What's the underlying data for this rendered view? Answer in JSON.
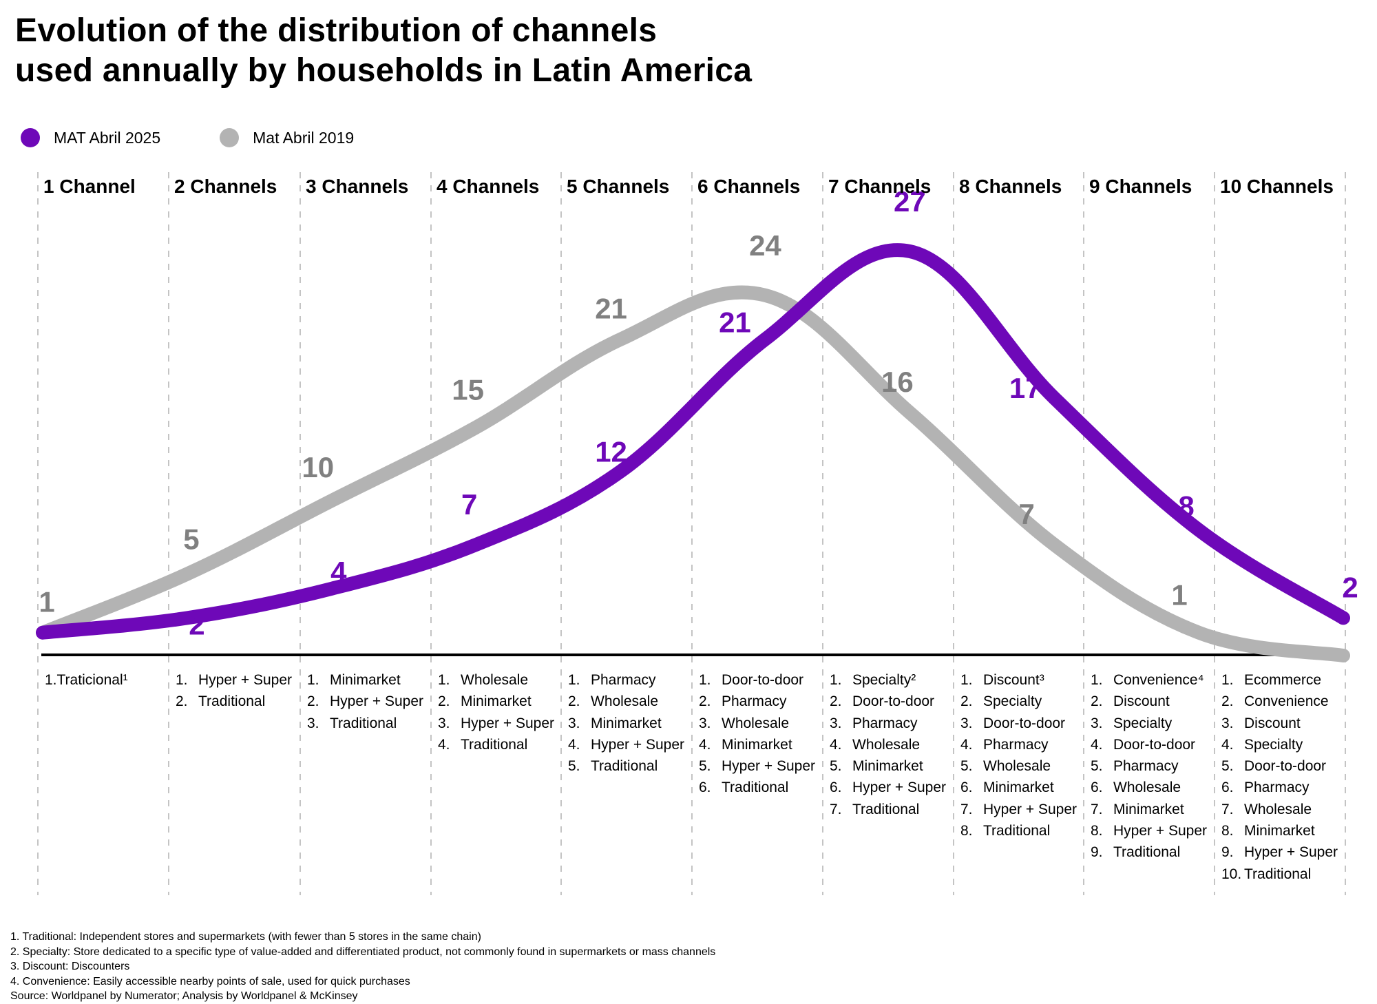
{
  "title_lines": [
    "Evolution of the distribution of channels",
    "used annually by households in Latin America"
  ],
  "colors": {
    "series_2025": "#6e08b8",
    "series_2019": "#b3b3b3",
    "label_2019": "#808080",
    "axis": "#000000",
    "divider": "#b0b0b0"
  },
  "chart_data": {
    "type": "line",
    "title": "Evolution of the distribution of channels used annually by households in Latin America",
    "xlabel": "",
    "ylabel": "",
    "categories": [
      "1 Channel",
      "2 Channels",
      "3 Channels",
      "4 Channels",
      "5 Channels",
      "6 Channels",
      "7 Channels",
      "8 Channels",
      "9 Channels",
      "10 Channels"
    ],
    "series": [
      {
        "name": "MAT Abril 2025",
        "color": "#6e08b8",
        "values": [
          1,
          2,
          4,
          7,
          12,
          21,
          27,
          17,
          8,
          2
        ]
      },
      {
        "name": "Mat Abril 2019",
        "color": "#b3b3b3",
        "values": [
          1,
          5,
          10,
          15,
          21,
          24,
          16,
          7,
          1,
          0
        ]
      }
    ],
    "ylim": [
      0,
      28
    ],
    "grid": false,
    "legend": "top-left",
    "data_labels": {
      "MAT Abril 2025": [
        "",
        "2",
        "4",
        "7",
        "12",
        "21",
        "27",
        "17",
        "8",
        "2"
      ],
      "Mat Abril 2019": [
        "1",
        "5",
        "10",
        "15",
        "21",
        "24",
        "16",
        "7",
        "1",
        ""
      ]
    }
  },
  "legend": [
    {
      "label": "MAT Abril 2025",
      "color": "#6e08b8"
    },
    {
      "label": "Mat Abril 2019",
      "color": "#b3b3b3"
    }
  ],
  "columns": [
    {
      "num": "1",
      "label": "Channel",
      "items": [],
      "single": "1.Traticional¹"
    },
    {
      "num": "2",
      "label": "Channels",
      "items": [
        "Hyper + Super",
        "Traditional"
      ]
    },
    {
      "num": "3",
      "label": "Channels",
      "items": [
        "Minimarket",
        "Hyper + Super",
        "Traditional"
      ]
    },
    {
      "num": "4",
      "label": "Channels",
      "items": [
        "Wholesale",
        "Minimarket",
        "Hyper + Super",
        "Traditional"
      ]
    },
    {
      "num": "5",
      "label": "Channels",
      "items": [
        "Pharmacy",
        "Wholesale",
        "Minimarket",
        "Hyper + Super",
        "Traditional"
      ]
    },
    {
      "num": "6",
      "label": "Channels",
      "items": [
        "Door-to-door",
        "Pharmacy",
        "Wholesale",
        "Minimarket",
        "Hyper + Super",
        "Traditional"
      ]
    },
    {
      "num": "7",
      "label": "Channels",
      "items": [
        "Specialty²",
        "Door-to-door",
        "Pharmacy",
        "Wholesale",
        "Minimarket",
        "Hyper + Super",
        "Traditional"
      ]
    },
    {
      "num": "8",
      "label": "Channels",
      "items": [
        "Discount³",
        "Specialty",
        "Door-to-door",
        "Pharmacy",
        "Wholesale",
        "Minimarket",
        "Hyper + Super",
        "Traditional"
      ]
    },
    {
      "num": "9",
      "label": "Channels",
      "items": [
        "Convenience⁴",
        "Discount",
        "Specialty",
        "Door-to-door",
        "Pharmacy",
        "Wholesale",
        "Minimarket",
        "Hyper + Super",
        "Traditional"
      ]
    },
    {
      "num": "10",
      "label": "Channels",
      "items": [
        "Ecommerce",
        "Convenience",
        "Discount",
        "Specialty",
        "Door-to-door",
        "Pharmacy",
        "Wholesale",
        "Minimarket",
        "Hyper + Super",
        "Traditional"
      ]
    }
  ],
  "footnotes": [
    "1. Traditional: Independent stores and supermarkets (with fewer than 5 stores in the same chain)",
    "2. Specialty: Store dedicated to a specific type of value-added and differentiated product, not commonly found in supermarkets or mass channels",
    "3. Discount: Discounters",
    "4. Convenience: Easily accessible nearby points of sale, used for quick purchases",
    "Source: Worldpanel by Numerator; Analysis by Worldpanel & McKinsey"
  ]
}
